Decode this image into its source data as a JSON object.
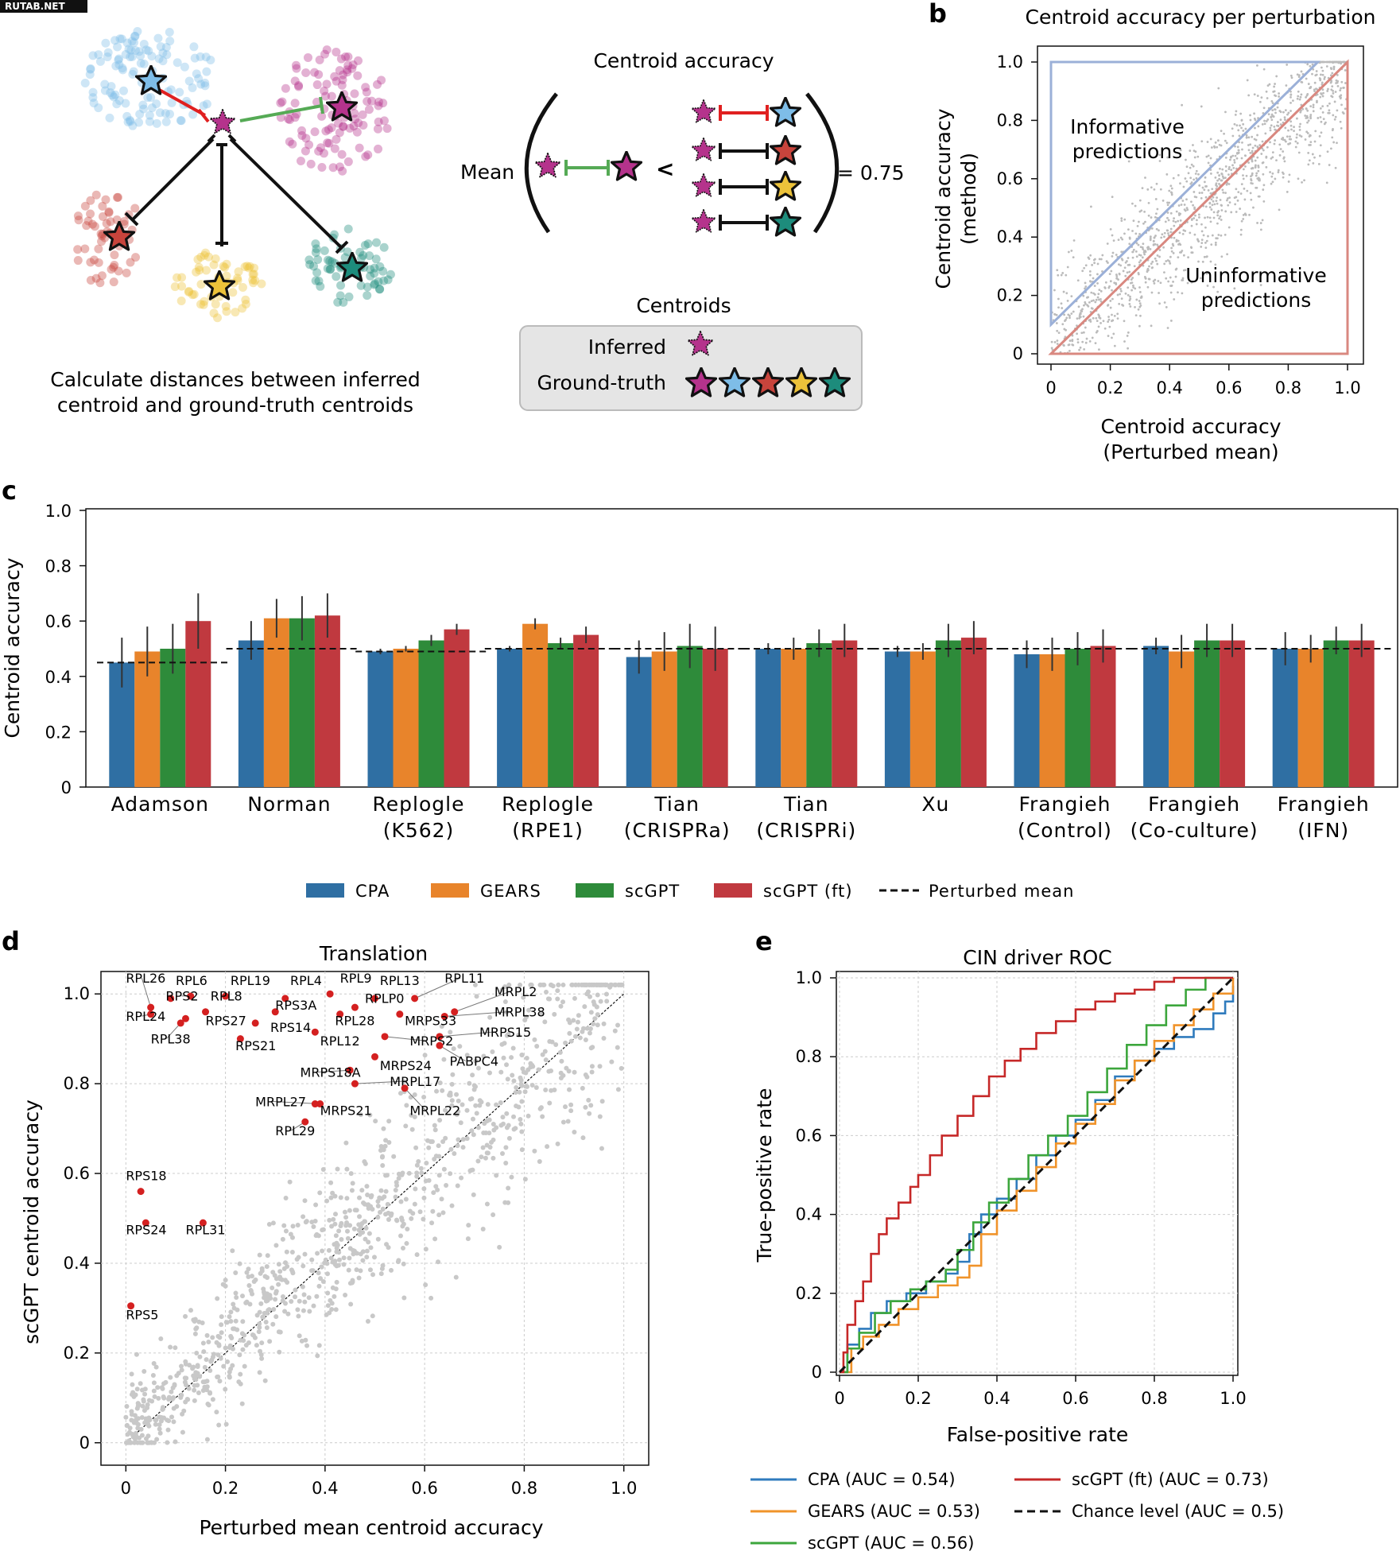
{
  "watermark": "RUTAB.NET",
  "panel_labels": {
    "a": "a",
    "b": "b",
    "c": "c",
    "d": "d",
    "e": "e"
  },
  "panel_a": {
    "caption_line1": "Calculate distances between inferred",
    "caption_line2": "centroid and ground-truth centroids",
    "title": "Centroid accuracy",
    "mean_label": "Mean",
    "less_than": "<",
    "result": "= 0.75",
    "legend_title": "Centroids",
    "inferred_label": "Inferred",
    "ground_truth_label": "Ground-truth",
    "colors": {
      "magenta": "#b5338c",
      "blue": "#7ebde8",
      "red": "#c8443c",
      "yellow": "#ecc23a",
      "teal": "#1d8c7c",
      "green_bar": "#55aa55",
      "red_bar": "#e02020"
    }
  },
  "chart_data": [
    {
      "panel": "b",
      "type": "scatter",
      "title": "Centroid accuracy per perturbation",
      "xlabel_line1": "Centroid accuracy",
      "xlabel_line2": "(Perturbed mean)",
      "ylabel_line1": "Centroid accuracy",
      "ylabel_line2": "(method)",
      "xlim": [
        0,
        1
      ],
      "ylim": [
        0,
        1
      ],
      "x_ticks": [
        "0",
        "0.2",
        "0.4",
        "0.6",
        "0.8",
        "1.0"
      ],
      "y_ticks": [
        "0",
        "0.2",
        "0.4",
        "0.6",
        "0.8",
        "1.0"
      ],
      "informative_label_line1": "Informative",
      "informative_label_line2": "predictions",
      "uninformative_label_line1": "Uninformative",
      "uninformative_label_line2": "predictions",
      "informative_region": [
        [
          0,
          0.1
        ],
        [
          0,
          1.0
        ],
        [
          0.9,
          1.0
        ]
      ],
      "uninformative_region": [
        [
          0,
          0
        ],
        [
          1.0,
          1.0
        ],
        [
          1.0,
          0
        ]
      ],
      "colors": {
        "informative": "#9bb0d8",
        "uninformative": "#d98880",
        "points": "#bbbbbb"
      }
    },
    {
      "panel": "c",
      "type": "bar",
      "ylabel": "Centroid accuracy",
      "ylim": [
        0,
        1.0
      ],
      "y_ticks": [
        "0",
        "0.2",
        "0.4",
        "0.6",
        "0.8",
        "1.0"
      ],
      "categories": [
        [
          "Adamson"
        ],
        [
          "Norman"
        ],
        [
          "Replogle",
          "(K562)"
        ],
        [
          "Replogle",
          "(RPE1)"
        ],
        [
          "Tian",
          "(CRISPRa)"
        ],
        [
          "Tian",
          "(CRISPRi)"
        ],
        [
          "Xu"
        ],
        [
          "Frangieh",
          "(Control)"
        ],
        [
          "Frangieh",
          "(Co-culture)"
        ],
        [
          "Frangieh",
          "(IFN)"
        ]
      ],
      "series": [
        {
          "name": "CPA",
          "color": "#2f6fa3",
          "values": [
            0.45,
            0.53,
            0.49,
            0.5,
            0.47,
            0.5,
            0.49,
            0.48,
            0.51,
            0.5
          ],
          "err": [
            0.09,
            0.07,
            0.01,
            0.01,
            0.06,
            0.02,
            0.02,
            0.05,
            0.03,
            0.06
          ]
        },
        {
          "name": "GEARS",
          "color": "#e8842b",
          "values": [
            0.49,
            0.61,
            0.5,
            0.59,
            0.49,
            0.5,
            0.49,
            0.48,
            0.49,
            0.5
          ],
          "err": [
            0.09,
            0.07,
            0.01,
            0.02,
            0.07,
            0.04,
            0.03,
            0.06,
            0.06,
            0.05
          ]
        },
        {
          "name": "scGPT",
          "color": "#2e8b3a",
          "values": [
            0.5,
            0.61,
            0.53,
            0.52,
            0.51,
            0.52,
            0.53,
            0.5,
            0.53,
            0.53
          ],
          "err": [
            0.09,
            0.08,
            0.02,
            0.02,
            0.08,
            0.05,
            0.06,
            0.06,
            0.06,
            0.05
          ]
        },
        {
          "name": "scGPT (ft)",
          "color": "#c0393f",
          "values": [
            0.6,
            0.62,
            0.57,
            0.55,
            0.5,
            0.53,
            0.54,
            0.51,
            0.53,
            0.53
          ],
          "err": [
            0.1,
            0.08,
            0.02,
            0.03,
            0.08,
            0.06,
            0.06,
            0.06,
            0.06,
            0.06
          ]
        }
      ],
      "perturbed_mean": [
        0.45,
        0.5,
        0.49,
        0.5,
        0.5,
        0.5,
        0.5,
        0.5,
        0.5,
        0.5
      ],
      "legend": [
        "CPA",
        "GEARS",
        "scGPT",
        "scGPT (ft)",
        "Perturbed mean"
      ]
    },
    {
      "panel": "d",
      "type": "scatter",
      "title": "Translation",
      "xlabel": "Perturbed mean centroid accuracy",
      "ylabel": "scGPT centroid accuracy",
      "xlim": [
        -0.05,
        1.05
      ],
      "ylim": [
        -0.05,
        1.05
      ],
      "x_ticks": [
        "0",
        "0.2",
        "0.4",
        "0.6",
        "0.8",
        "1.0"
      ],
      "y_ticks": [
        "0",
        "0.2",
        "0.4",
        "0.6",
        "0.8",
        "1.0"
      ],
      "highlight_color": "#d42020",
      "highlighted": [
        {
          "label": "RPL26",
          "x": 0.05,
          "y": 0.97,
          "lx": 0.0,
          "ly": 1.025
        },
        {
          "label": "RPL6",
          "x": 0.09,
          "y": 0.99,
          "lx": 0.1,
          "ly": 1.02
        },
        {
          "label": "RPS2",
          "x": 0.13,
          "y": 0.995,
          "lx": 0.08,
          "ly": 0.985
        },
        {
          "label": "RPL19",
          "x": 0.2,
          "y": 0.995,
          "lx": 0.21,
          "ly": 1.02
        },
        {
          "label": "RPL8",
          "x": 0.16,
          "y": 0.96,
          "lx": 0.17,
          "ly": 0.985
        },
        {
          "label": "RPL4",
          "x": 0.32,
          "y": 0.99,
          "lx": 0.33,
          "ly": 1.02
        },
        {
          "label": "RPL9",
          "x": 0.41,
          "y": 1.0,
          "lx": 0.43,
          "ly": 1.025
        },
        {
          "label": "RPL13",
          "x": 0.5,
          "y": 0.99,
          "lx": 0.51,
          "ly": 1.02
        },
        {
          "label": "RPL11",
          "x": 0.58,
          "y": 0.99,
          "lx": 0.64,
          "ly": 1.025
        },
        {
          "label": "MRPL2",
          "x": 0.66,
          "y": 0.96,
          "lx": 0.74,
          "ly": 0.995
        },
        {
          "label": "RPLP0",
          "x": 0.46,
          "y": 0.97,
          "lx": 0.48,
          "ly": 0.98
        },
        {
          "label": "RPS3A",
          "x": 0.3,
          "y": 0.96,
          "lx": 0.3,
          "ly": 0.965
        },
        {
          "label": "MRPL38",
          "x": 0.64,
          "y": 0.95,
          "lx": 0.74,
          "ly": 0.95
        },
        {
          "label": "RPL24",
          "x": 0.05,
          "y": 0.955,
          "lx": 0.0,
          "ly": 0.94
        },
        {
          "label": "RPS27",
          "x": 0.12,
          "y": 0.945,
          "lx": 0.16,
          "ly": 0.93
        },
        {
          "label": "RPL28",
          "x": 0.43,
          "y": 0.955,
          "lx": 0.42,
          "ly": 0.93
        },
        {
          "label": "MRPS33",
          "x": 0.55,
          "y": 0.955,
          "lx": 0.56,
          "ly": 0.93
        },
        {
          "label": "RPL38",
          "x": 0.11,
          "y": 0.935,
          "lx": 0.05,
          "ly": 0.89
        },
        {
          "label": "RPS14",
          "x": 0.26,
          "y": 0.935,
          "lx": 0.29,
          "ly": 0.915
        },
        {
          "label": "MRPS15",
          "x": 0.63,
          "y": 0.905,
          "lx": 0.71,
          "ly": 0.905
        },
        {
          "label": "RPL12",
          "x": 0.38,
          "y": 0.915,
          "lx": 0.39,
          "ly": 0.885
        },
        {
          "label": "RPS21",
          "x": 0.23,
          "y": 0.9,
          "lx": 0.22,
          "ly": 0.875
        },
        {
          "label": "MRPS2",
          "x": 0.52,
          "y": 0.905,
          "lx": 0.57,
          "ly": 0.885
        },
        {
          "label": "PABPC4",
          "x": 0.63,
          "y": 0.885,
          "lx": 0.65,
          "ly": 0.84
        },
        {
          "label": "MRPS24",
          "x": 0.5,
          "y": 0.86,
          "lx": 0.51,
          "ly": 0.83
        },
        {
          "label": "MRPS18A",
          "x": 0.45,
          "y": 0.83,
          "lx": 0.35,
          "ly": 0.815
        },
        {
          "label": "MRPL17",
          "x": 0.46,
          "y": 0.8,
          "lx": 0.53,
          "ly": 0.795
        },
        {
          "label": "MRPL27",
          "x": 0.39,
          "y": 0.755,
          "lx": 0.26,
          "ly": 0.75
        },
        {
          "label": "MRPS21",
          "x": 0.38,
          "y": 0.755,
          "lx": 0.39,
          "ly": 0.73
        },
        {
          "label": "MRPL22",
          "x": 0.56,
          "y": 0.79,
          "lx": 0.57,
          "ly": 0.73
        },
        {
          "label": "RPL29",
          "x": 0.36,
          "y": 0.715,
          "lx": 0.3,
          "ly": 0.685
        },
        {
          "label": "RPS18",
          "x": 0.03,
          "y": 0.56,
          "lx": 0.0,
          "ly": 0.585
        },
        {
          "label": "RPS24",
          "x": 0.04,
          "y": 0.49,
          "lx": 0.0,
          "ly": 0.465
        },
        {
          "label": "RPL31",
          "x": 0.155,
          "y": 0.49,
          "lx": 0.12,
          "ly": 0.465
        },
        {
          "label": "RPS5",
          "x": 0.01,
          "y": 0.305,
          "lx": 0.0,
          "ly": 0.275
        }
      ]
    },
    {
      "panel": "e",
      "type": "line",
      "title": "CIN driver ROC",
      "xlabel": "False-positive rate",
      "ylabel": "True-positive rate",
      "xlim": [
        0,
        1
      ],
      "ylim": [
        0,
        1
      ],
      "x_ticks": [
        "0",
        "0.2",
        "0.4",
        "0.6",
        "0.8",
        "1.0"
      ],
      "y_ticks": [
        "0",
        "0.2",
        "0.4",
        "0.6",
        "0.8",
        "1.0"
      ],
      "series": [
        {
          "name": "CPA (AUC = 0.54)",
          "color": "#2f7bbd",
          "x": [
            0,
            0.02,
            0.05,
            0.08,
            0.12,
            0.17,
            0.22,
            0.27,
            0.3,
            0.33,
            0.36,
            0.4,
            0.45,
            0.5,
            0.55,
            0.6,
            0.65,
            0.7,
            0.75,
            0.8,
            0.85,
            0.9,
            0.95,
            0.98,
            1.0
          ],
          "y": [
            0,
            0.07,
            0.11,
            0.15,
            0.18,
            0.2,
            0.23,
            0.25,
            0.28,
            0.35,
            0.4,
            0.44,
            0.49,
            0.55,
            0.6,
            0.64,
            0.69,
            0.75,
            0.79,
            0.82,
            0.85,
            0.87,
            0.91,
            0.94,
            0.98
          ]
        },
        {
          "name": "GEARS (AUC = 0.53)",
          "color": "#f0932a",
          "x": [
            0,
            0.03,
            0.06,
            0.1,
            0.15,
            0.2,
            0.25,
            0.3,
            0.33,
            0.36,
            0.4,
            0.45,
            0.5,
            0.55,
            0.6,
            0.65,
            0.7,
            0.75,
            0.8,
            0.85,
            0.9,
            0.95,
            1.0
          ],
          "y": [
            0,
            0.06,
            0.09,
            0.12,
            0.16,
            0.19,
            0.22,
            0.24,
            0.27,
            0.35,
            0.41,
            0.46,
            0.52,
            0.58,
            0.63,
            0.68,
            0.74,
            0.79,
            0.84,
            0.88,
            0.92,
            0.96,
            1.0
          ]
        },
        {
          "name": "scGPT (AUC = 0.56)",
          "color": "#3ca63c",
          "x": [
            0,
            0.02,
            0.05,
            0.09,
            0.13,
            0.18,
            0.22,
            0.27,
            0.3,
            0.34,
            0.38,
            0.43,
            0.48,
            0.53,
            0.58,
            0.63,
            0.68,
            0.73,
            0.78,
            0.83,
            0.88,
            0.93,
            1.0
          ],
          "y": [
            0,
            0.06,
            0.1,
            0.15,
            0.18,
            0.21,
            0.23,
            0.26,
            0.31,
            0.38,
            0.43,
            0.49,
            0.55,
            0.6,
            0.65,
            0.71,
            0.77,
            0.83,
            0.88,
            0.93,
            0.97,
            1.0,
            1.0
          ]
        },
        {
          "name": "scGPT (ft) (AUC = 0.73)",
          "color": "#c62828",
          "x": [
            0,
            0.01,
            0.02,
            0.04,
            0.06,
            0.08,
            0.1,
            0.12,
            0.15,
            0.18,
            0.2,
            0.23,
            0.26,
            0.3,
            0.34,
            0.38,
            0.42,
            0.46,
            0.5,
            0.55,
            0.6,
            0.65,
            0.7,
            0.75,
            0.8,
            0.85,
            0.9,
            1.0
          ],
          "y": [
            0,
            0.05,
            0.12,
            0.18,
            0.23,
            0.3,
            0.35,
            0.39,
            0.43,
            0.47,
            0.5,
            0.55,
            0.6,
            0.65,
            0.7,
            0.75,
            0.79,
            0.82,
            0.86,
            0.89,
            0.92,
            0.94,
            0.96,
            0.97,
            0.99,
            1.0,
            1.0,
            1.0
          ]
        },
        {
          "name": "Chance level (AUC = 0.5)",
          "color": "#111111",
          "dashed": true,
          "x": [
            0,
            1
          ],
          "y": [
            0,
            1
          ]
        }
      ]
    }
  ]
}
